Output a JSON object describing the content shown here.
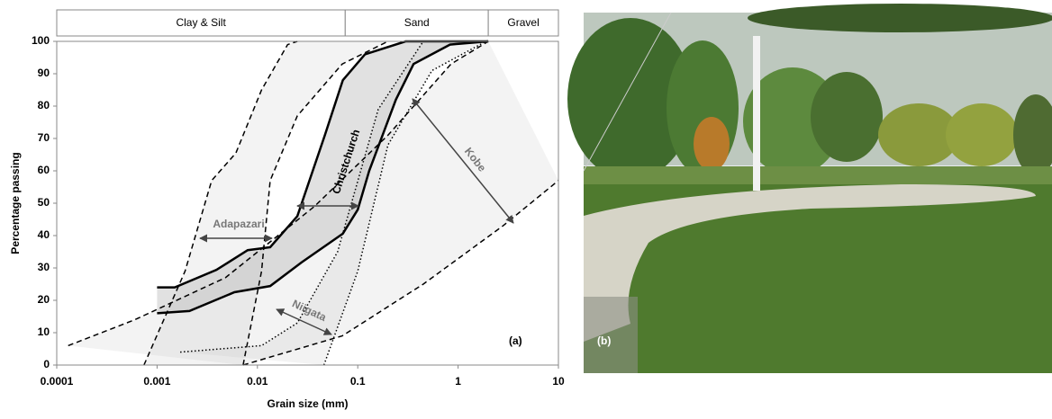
{
  "chart_data": {
    "type": "envelope",
    "xlabel": "Grain size (mm)",
    "ylabel": "Percentage passing",
    "panel_label": "(a)",
    "photo_label": "(b)",
    "xscale": "log",
    "xlim": [
      0.0001,
      10
    ],
    "xticks": [
      0.0001,
      0.001,
      0.01,
      0.1,
      1,
      10
    ],
    "ylim": [
      0,
      100
    ],
    "yticks": [
      0,
      10,
      20,
      30,
      40,
      50,
      60,
      70,
      80,
      90,
      100
    ],
    "zones": [
      {
        "label": "Clay & Silt",
        "from": 0.0001,
        "to": 0.075
      },
      {
        "label": "Sand",
        "from": 0.075,
        "to": 2
      },
      {
        "label": "Gravel",
        "from": 2,
        "to": 10
      }
    ],
    "series": [
      {
        "name": "Adapazari",
        "color": "#000000",
        "style": "dashed",
        "upper": {
          "x": [
            0.00074,
            0.0019,
            0.0035,
            0.0061,
            0.011,
            0.02,
            0.025
          ],
          "values": [
            0,
            29,
            57,
            65.5,
            85,
            99,
            100
          ]
        },
        "lower": {
          "x": [
            0.0072,
            0.011,
            0.0134,
            0.025,
            0.07,
            0.2
          ],
          "values": [
            0,
            29,
            57,
            77,
            93,
            100
          ]
        }
      },
      {
        "name": "Christchurch",
        "color": "#000000",
        "style": "solid",
        "upper": {
          "x": [
            0.001,
            0.0015,
            0.0039,
            0.008,
            0.0134,
            0.025,
            0.047,
            0.071,
            0.118,
            0.3,
            2
          ],
          "values": [
            24,
            24,
            29.4,
            35.5,
            36.4,
            46,
            71,
            88,
            96,
            100,
            100
          ]
        },
        "lower": {
          "x": [
            0.001,
            0.0021,
            0.0059,
            0.0134,
            0.0275,
            0.071,
            0.1,
            0.13,
            0.24,
            0.36,
            0.83,
            2
          ],
          "values": [
            16,
            16.7,
            22.5,
            24.4,
            31.7,
            40.6,
            48,
            60,
            82,
            93,
            99,
            100
          ]
        }
      },
      {
        "name": "Niigata",
        "color": "#000000",
        "style": "dotted",
        "upper": {
          "x": [
            0.0017,
            0.011,
            0.025,
            0.063,
            0.16,
            0.45
          ],
          "values": [
            4,
            6,
            13,
            35,
            79,
            100
          ]
        },
        "lower": {
          "x": [
            0.046,
            0.1,
            0.2,
            0.55,
            1.9
          ],
          "values": [
            0,
            29,
            68,
            91,
            100
          ]
        }
      },
      {
        "name": "Kobe",
        "color": "#000000",
        "style": "dashed",
        "upper": {
          "x": [
            0.00013,
            0.0006,
            0.0048,
            0.037,
            0.2,
            0.85,
            2
          ],
          "values": [
            6,
            14,
            27,
            49,
            71,
            93,
            100
          ]
        },
        "lower": {
          "x": [
            0.0072,
            0.07,
            0.45,
            2.8,
            10
          ],
          "values": [
            0,
            9,
            25,
            43,
            57
          ]
        }
      }
    ]
  }
}
